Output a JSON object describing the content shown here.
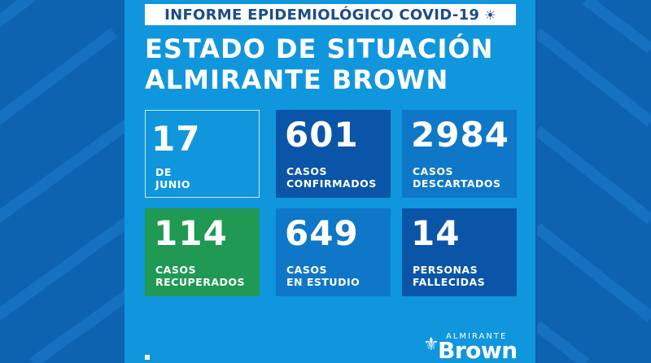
{
  "header": {
    "text": "INFORME EPIDEMIOLÓGICO COVID-19",
    "icon": "virus-icon",
    "icon_glyph": "☀"
  },
  "title": {
    "line1": "ESTADO DE SITUACIÓN",
    "line2": "ALMIRANTE BROWN"
  },
  "cards": {
    "date": {
      "number": "17",
      "label1": "DE",
      "label2": "JUNIO"
    },
    "confirmed": {
      "number": "601",
      "label1": "CASOS",
      "label2": "CONFIRMADOS"
    },
    "discarded": {
      "number": "2984",
      "label1": "CASOS",
      "label2": "DESCARTADOS"
    },
    "recovered": {
      "number": "114",
      "label1": "CASOS",
      "label2": "RECUPERADOS"
    },
    "study": {
      "number": "649",
      "label1": "CASOS",
      "label2": "EN ESTUDIO"
    },
    "deaths": {
      "number": "14",
      "label1": "PERSONAS",
      "label2": "FALLECIDAS"
    }
  },
  "logo": {
    "small": "ALMIRANTE",
    "big": "Brown",
    "icon": "fleur-de-lis-icon",
    "icon_glyph": "⚜"
  },
  "colors": {
    "panel": "#1096dd",
    "dark_card": "#0a55a7",
    "mid_card": "#0f77c7",
    "green_card": "#1f9954",
    "header_text": "#1b4c8c"
  }
}
